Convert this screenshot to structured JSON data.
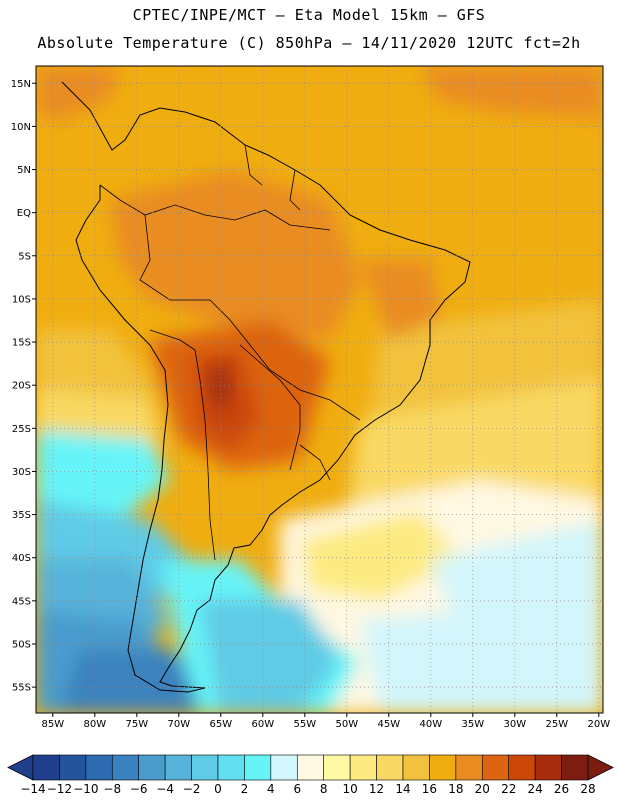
{
  "header": {
    "title_line1": "CPTEC/INPE/MCT –  Eta Model 15km – GFS",
    "title_line2": "Absolute Temperature (C) 850hPa – 14/11/2020 12UTC fct=2h"
  },
  "map": {
    "region": "South America",
    "lat_range": [
      -58,
      17
    ],
    "lon_range": [
      -87,
      -19.5
    ],
    "lat_ticks": [
      {
        "value": 15,
        "label": "15N"
      },
      {
        "value": 10,
        "label": "10N"
      },
      {
        "value": 5,
        "label": "5N"
      },
      {
        "value": 0,
        "label": "EQ"
      },
      {
        "value": -5,
        "label": "5S"
      },
      {
        "value": -10,
        "label": "10S"
      },
      {
        "value": -15,
        "label": "15S"
      },
      {
        "value": -20,
        "label": "20S"
      },
      {
        "value": -25,
        "label": "25S"
      },
      {
        "value": -30,
        "label": "30S"
      },
      {
        "value": -35,
        "label": "35S"
      },
      {
        "value": -40,
        "label": "40S"
      },
      {
        "value": -45,
        "label": "45S"
      },
      {
        "value": -50,
        "label": "50S"
      },
      {
        "value": -55,
        "label": "55S"
      }
    ],
    "lon_ticks": [
      {
        "value": -85,
        "label": "85W"
      },
      {
        "value": -80,
        "label": "80W"
      },
      {
        "value": -75,
        "label": "75W"
      },
      {
        "value": -70,
        "label": "70W"
      },
      {
        "value": -65,
        "label": "65W"
      },
      {
        "value": -60,
        "label": "60W"
      },
      {
        "value": -55,
        "label": "55W"
      },
      {
        "value": -50,
        "label": "50W"
      },
      {
        "value": -45,
        "label": "45W"
      },
      {
        "value": -40,
        "label": "40W"
      },
      {
        "value": -35,
        "label": "35W"
      },
      {
        "value": -30,
        "label": "30W"
      },
      {
        "value": -25,
        "label": "25W"
      },
      {
        "value": -20,
        "label": "20W"
      }
    ],
    "gridlines": "dotted"
  },
  "colorbar": {
    "unit": "C",
    "levels": [
      -14,
      -12,
      -10,
      -8,
      -6,
      -4,
      -2,
      0,
      2,
      4,
      6,
      8,
      10,
      12,
      14,
      16,
      18,
      20,
      22,
      24,
      26,
      28
    ],
    "labels": [
      "-14",
      "-12",
      "-10",
      "-8",
      "-6",
      "-4",
      "-2",
      "0",
      "2",
      "4",
      "6",
      "8",
      "10",
      "12",
      "14",
      "16",
      "18",
      "20",
      "22",
      "24",
      "26",
      "28"
    ],
    "colors": [
      "#1f3f8c",
      "#23549c",
      "#2d6aaf",
      "#3a82bf",
      "#4a9ccd",
      "#57b3da",
      "#5fcbe6",
      "#62dff0",
      "#66f4f8",
      "#d2f6fb",
      "#fff8e2",
      "#fff9a6",
      "#fdeb82",
      "#f9d964",
      "#f2c23e",
      "#f0ad10",
      "#e98c22",
      "#dd6411",
      "#ca4707",
      "#a82d0f",
      "#7d1d12"
    ],
    "low_color": "#1f3f8c",
    "high_color": "#7d1d12"
  }
}
